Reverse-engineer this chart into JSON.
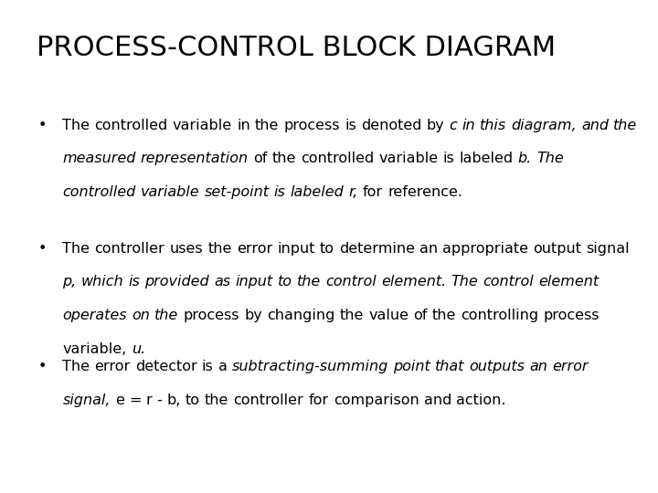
{
  "title": "PROCESS-CONTROL BLOCK DIAGRAM",
  "background_color": "#ffffff",
  "title_fontsize": 22,
  "body_fontsize": 11.5,
  "bullet_1": [
    {
      "text": "The controlled variable in the process is denoted by ",
      "style": "normal"
    },
    {
      "text": "c in this diagram, and the measured representation",
      "style": "italic"
    },
    {
      "text": " of the controlled variable is labeled ",
      "style": "normal"
    },
    {
      "text": "b. The controlled variable set-point is labeled r,",
      "style": "italic"
    },
    {
      "text": " for reference.",
      "style": "normal"
    }
  ],
  "bullet_2": [
    {
      "text": "The controller uses the error input to determine an appropriate output signal ",
      "style": "normal"
    },
    {
      "text": "p, which is provided as input to the control element. The control element operates on the",
      "style": "italic"
    },
    {
      "text": " process by changing the value of the controlling process variable, ",
      "style": "normal"
    },
    {
      "text": "u.",
      "style": "italic"
    }
  ],
  "bullet_3": [
    {
      "text": "The error detector is a ",
      "style": "normal"
    },
    {
      "text": "subtracting-summing point that outputs an error signal,",
      "style": "italic"
    },
    {
      "text": " e = r - b, to the controller for comparison and action.",
      "style": "normal"
    }
  ]
}
